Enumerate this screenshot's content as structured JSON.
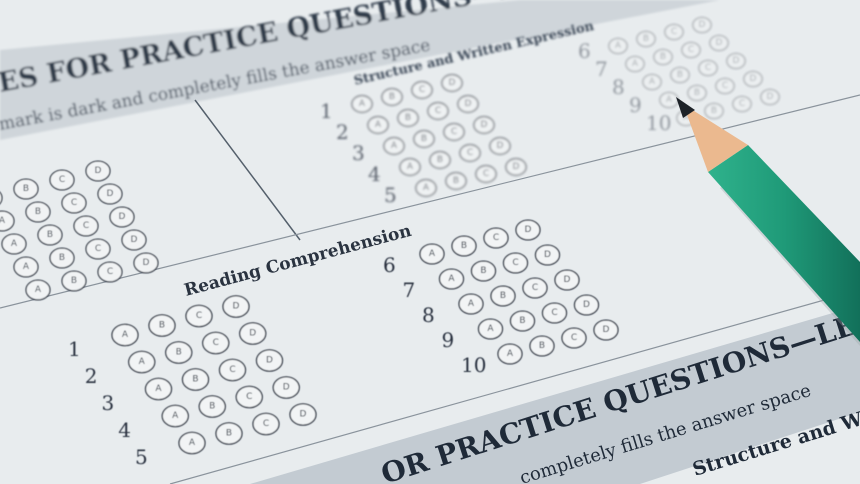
{
  "top_banner": {
    "title": "ES FOR PRACTICE QUESTIONS—LE",
    "instruction": "mark is dark and completely fills the answer space"
  },
  "structure_section": {
    "heading": "Structure and Written Expression",
    "rows_a": [
      "1",
      "2",
      "3",
      "4",
      "5"
    ],
    "rows_b": [
      "6",
      "7",
      "8",
      "9",
      "10"
    ]
  },
  "reading_section": {
    "heading": "Reading Comprehension",
    "rows_a": [
      "1",
      "2",
      "3",
      "4",
      "5"
    ],
    "rows_b": [
      "6",
      "7",
      "8",
      "9",
      "10"
    ]
  },
  "options": [
    "A",
    "B",
    "C",
    "D"
  ],
  "bottom_banner": {
    "title": "OR PRACTICE QUESTIONS—LEV",
    "instruction": "completely fills the answer space",
    "next_heading": "Structure and W"
  },
  "colors": {
    "paper": "#e6eaec",
    "banner": "#c9d0d6",
    "ink": "#2a3340",
    "pencil_green": "#1f9a78",
    "pencil_wood": "#e9b890"
  }
}
